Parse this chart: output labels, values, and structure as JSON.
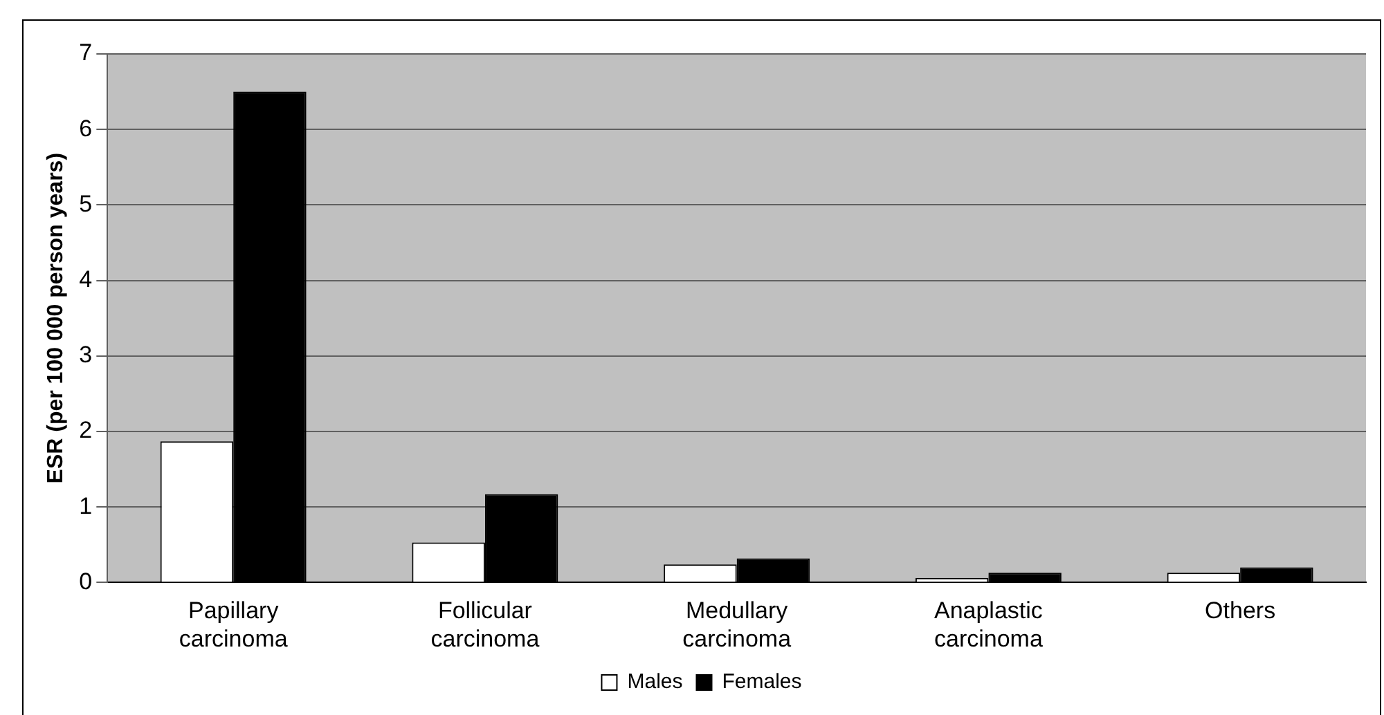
{
  "chart_data": {
    "type": "bar",
    "ylabel": "ESR (per 100 000 person years)",
    "categories": [
      "Papillary carcinoma",
      "Follicular carcinoma",
      "Medullary carcinoma",
      "Anaplastic carcinoma",
      "Others"
    ],
    "series": [
      {
        "name": "Males",
        "color": "#ffffff",
        "values": [
          1.87,
          0.53,
          0.24,
          0.06,
          0.13
        ]
      },
      {
        "name": "Females",
        "color": "#000000",
        "values": [
          6.5,
          1.17,
          0.32,
          0.13,
          0.2
        ]
      }
    ],
    "ylim": [
      0,
      7
    ],
    "yticks": [
      0,
      1,
      2,
      3,
      4,
      5,
      6,
      7
    ],
    "grid": "y",
    "legend": "bottom"
  }
}
